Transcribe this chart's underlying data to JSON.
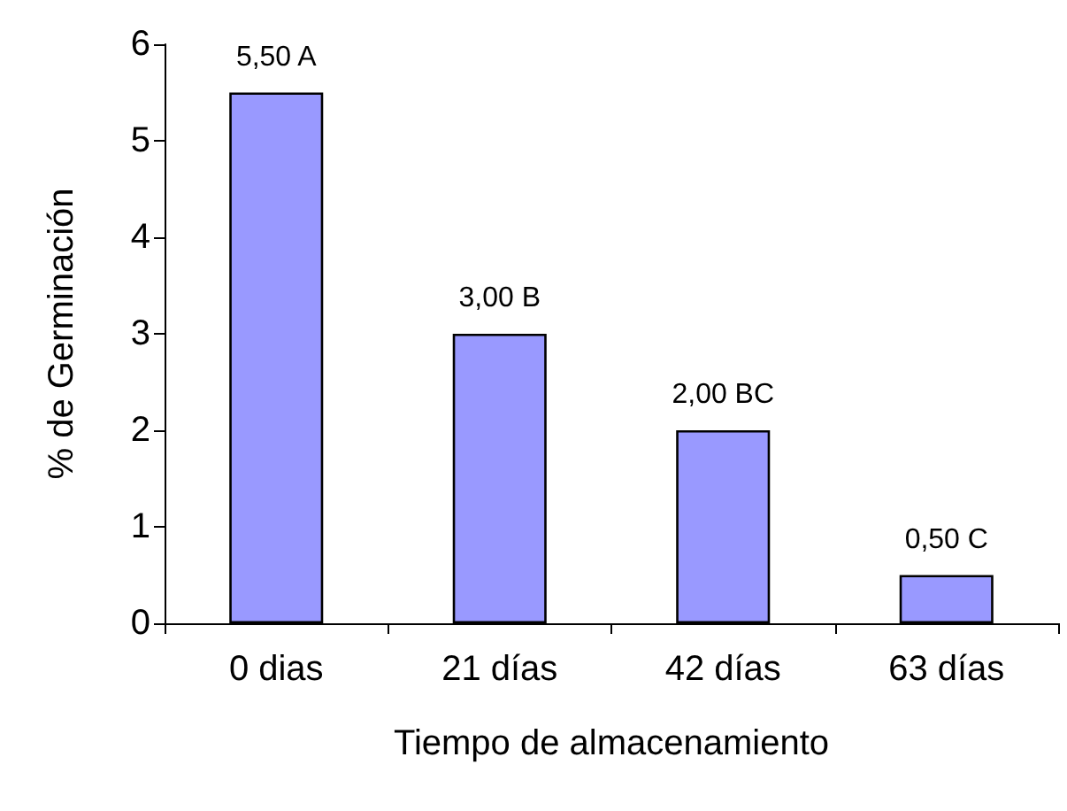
{
  "chart_data": {
    "type": "bar",
    "xlabel": "Tiempo de almacenamiento",
    "ylabel": "% de Germinación",
    "categories": [
      "0 dias",
      "21 días",
      "42 días",
      "63 días"
    ],
    "values": [
      5.5,
      3.0,
      2.0,
      0.5
    ],
    "value_labels": [
      "5,50 A",
      "3,00 B",
      "2,00 BC",
      "0,50 C"
    ],
    "color": "#9999ff",
    "ylim": [
      0,
      6
    ],
    "yticks": [
      0,
      1,
      2,
      3,
      4,
      5,
      6
    ],
    "grid": false
  }
}
